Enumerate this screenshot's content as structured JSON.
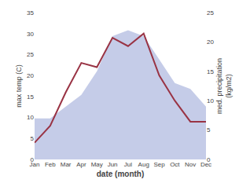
{
  "chart_data": {
    "type": "line",
    "categories": [
      "Jan",
      "Feb",
      "Mar",
      "Apr",
      "May",
      "Jun",
      "Jul",
      "Aug",
      "Sep",
      "Oct",
      "Nov",
      "Dec"
    ],
    "series": [
      {
        "type": "line",
        "color": "#993344",
        "values": [
          4,
          8,
          16,
          23,
          22,
          29,
          27,
          30,
          20,
          14,
          9,
          9
        ]
      },
      {
        "type": "area",
        "color": "#c5cce8",
        "axis": "y2",
        "values": [
          7,
          7,
          9,
          11,
          15,
          21,
          22,
          21,
          17,
          13,
          12,
          9
        ]
      }
    ],
    "xlabel": "date (month)",
    "ylabel": "max temp (C)",
    "y2label": "med. precipitation\n(kg/m2)",
    "ylim": [
      0,
      35
    ],
    "yticks": [
      0,
      5,
      10,
      15,
      20,
      25,
      30,
      35
    ],
    "y2lim": [
      0,
      25
    ],
    "y2ticks": [
      0,
      5,
      10,
      15,
      20,
      25
    ],
    "grid": false
  }
}
